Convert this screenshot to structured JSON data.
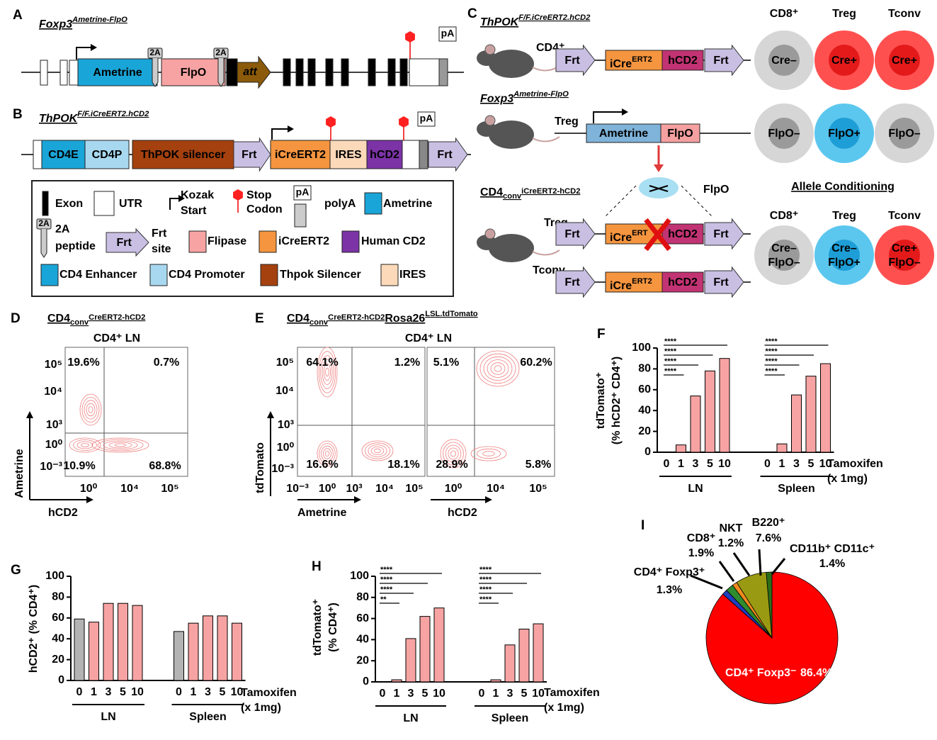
{
  "panel_labels": [
    "A",
    "B",
    "C",
    "D",
    "E",
    "F",
    "G",
    "H",
    "I"
  ],
  "panel_a": {
    "title": "Foxp3",
    "title_sup": "Ametrine-FlpO",
    "peptides": [
      "2A",
      "2A"
    ],
    "ametrine": "Ametrine",
    "flpo": "FlpO",
    "att": "att",
    "polya": "pA"
  },
  "panel_b": {
    "title": "ThPOK",
    "title_sup": "F/F.iCreERT2.hCD2",
    "cd4e": "CD4E",
    "cd4p": "CD4P",
    "silencer": "ThPOK silencer",
    "frt": [
      "Frt",
      "Frt"
    ],
    "icre": "iCreERT2",
    "ires": "IRES",
    "hcd2": "hCD2",
    "polya": "pA"
  },
  "legend": {
    "exon": "Exon",
    "utr": "UTR",
    "kozak": [
      "Kozak",
      "Start"
    ],
    "stop": [
      "Stop",
      "Codon"
    ],
    "pa": "pA",
    "polya": "polyA",
    "ametrine": "Ametrine",
    "peptide_icon": "2A",
    "peptide": [
      "2A",
      "peptide"
    ],
    "frt_icon": "Frt",
    "frt": [
      "Frt",
      "site"
    ],
    "flipase": "Flipase",
    "icre": "iCreERT2",
    "hcd2": "Human CD2",
    "enhancer": "CD4 Enhancer",
    "promoter": "CD4 Promoter",
    "silencer": "Thpok Silencer",
    "ires": "IRES"
  },
  "panel_c": {
    "row1": {
      "title": "ThPOK",
      "title_sup": "F/F.iCreERT2.hCD2",
      "cell": "CD4⁺",
      "frt": [
        "Frt",
        "Frt"
      ],
      "icre": "iCre",
      "icre_sup": "ERT2",
      "hcd2": "hCD2"
    },
    "row2": {
      "title": "Foxp3",
      "title_sup": "Ametrine-FlpO",
      "cell": "Treg",
      "ametrine": "Ametrine",
      "flpo": "FlpO"
    },
    "row3": {
      "title": "CD4",
      "title_sub": "conv",
      "title_sup": "iCreERT2-hCD2",
      "enzyme": "FlpO",
      "cells": [
        "Treg",
        "Tconv"
      ],
      "treg": {
        "frt": [
          "Frt",
          "Frt"
        ],
        "icre": "iCre",
        "icre_sup": "ERT",
        "hcd2": "hCD2"
      },
      "tconv": {
        "frt": [
          "Frt",
          "Frt"
        ],
        "icre": "iCre",
        "icre_sup": "ERT2",
        "hcd2": "hCD2"
      }
    },
    "columns": [
      "CD8⁺",
      "Treg",
      "Tconv"
    ],
    "cre_row": [
      "Cre–",
      "Cre+",
      "Cre+"
    ],
    "flpo_row": [
      "FlpO–",
      "FlpO+",
      "FlpO–"
    ],
    "allele_title": "Allele Conditioning",
    "allele_columns": [
      "CD8⁺",
      "Treg",
      "Tconv"
    ],
    "allele_row": [
      [
        "Cre–",
        "FlpO–"
      ],
      [
        "Cre–",
        "FlpO+"
      ],
      [
        "Cre+",
        "FlpO–"
      ]
    ]
  },
  "panel_d": {
    "title": "CD4",
    "title_sub": "conv",
    "title_sup": "CreERT2-hCD2",
    "subtitle": "CD4⁺ LN",
    "quadrants": [
      "19.6%",
      "0.7%",
      "10.9%",
      "68.8%"
    ],
    "yticks": [
      "10⁵",
      "10⁴",
      "10³",
      "10⁰",
      "10⁻³"
    ],
    "xticks": [
      "10⁰",
      "10⁴",
      "10⁵"
    ],
    "ylabel": "Ametrine",
    "xlabel": "hCD2"
  },
  "panel_e": {
    "title": "CD4",
    "title_sub": "conv",
    "title_sup": "CreERT2-hCD2",
    "title2": "Rosa26",
    "title2_sup": "LSL.tdTomato",
    "subtitle": "CD4⁺ LN",
    "yticks": [
      "10⁵",
      "10⁴",
      "10³",
      "10⁰",
      "10⁻³"
    ],
    "ylabel": "tdTomato",
    "left": {
      "quadrants": [
        "64.1%",
        "1.2%",
        "16.6%",
        "18.1%"
      ],
      "xticks": [
        "10⁻³",
        "10⁰",
        "10³",
        "10⁴",
        "10⁵"
      ],
      "xlabel": "Ametrine"
    },
    "right": {
      "quadrants": [
        "5.1%",
        "60.2%",
        "28.9%",
        "5.8%"
      ],
      "xticks": [
        "10⁰",
        "10⁴",
        "10⁵"
      ],
      "xlabel": "hCD2"
    }
  },
  "chart_data": [
    {
      "type": "bar",
      "ylabel": [
        "tdTomato⁺",
        "(% hCD2⁺ CD4⁺)"
      ],
      "categories": [
        "0",
        "1",
        "3",
        "5",
        "10",
        "0",
        "1",
        "3",
        "5",
        "10"
      ],
      "groups": [
        "LN",
        "Spleen"
      ],
      "values": [
        0,
        7,
        54,
        78,
        90,
        0,
        8,
        55,
        73,
        85
      ],
      "colors": [
        "#f8a3a3",
        "#f8a3a3",
        "#f8a3a3",
        "#f8a3a3",
        "#f8a3a3",
        "#f8a3a3",
        "#f8a3a3",
        "#f8a3a3",
        "#f8a3a3",
        "#f8a3a3"
      ],
      "ylim": [
        0,
        100
      ],
      "yticks": [
        0,
        20,
        40,
        60,
        80,
        100
      ],
      "xlabel": [
        "Tamoxifen",
        "(x 1mg)"
      ],
      "annotations": [
        "****",
        "****",
        "****",
        "****",
        "****",
        "****",
        "****",
        "****"
      ]
    },
    {
      "type": "bar",
      "ylabel": [
        "hCD2⁺ (% CD4⁺)"
      ],
      "categories": [
        "0",
        "1",
        "3",
        "5",
        "10",
        "0",
        "1",
        "3",
        "5",
        "10"
      ],
      "groups": [
        "LN",
        "Spleen"
      ],
      "values": [
        59,
        56,
        74,
        74,
        72,
        47,
        55,
        62,
        62,
        55
      ],
      "colors": [
        "#b3b3b3",
        "#f8a3a3",
        "#f8a3a3",
        "#f8a3a3",
        "#f8a3a3",
        "#b3b3b3",
        "#f8a3a3",
        "#f8a3a3",
        "#f8a3a3",
        "#f8a3a3"
      ],
      "ylim": [
        0,
        100
      ],
      "yticks": [
        0,
        20,
        40,
        60,
        80,
        100
      ],
      "xlabel": [
        "Tamoxifen",
        "(x 1mg)"
      ]
    },
    {
      "type": "bar",
      "ylabel": [
        "tdTomato⁺",
        "(% CD4⁺)"
      ],
      "categories": [
        "0",
        "1",
        "3",
        "5",
        "10",
        "0",
        "1",
        "3",
        "5",
        "10"
      ],
      "groups": [
        "LN",
        "Spleen"
      ],
      "values": [
        0,
        2,
        41,
        62,
        70,
        0,
        2,
        35,
        50,
        55
      ],
      "colors": [
        "#f8a3a3",
        "#f8a3a3",
        "#f8a3a3",
        "#f8a3a3",
        "#f8a3a3",
        "#f8a3a3",
        "#f8a3a3",
        "#f8a3a3",
        "#f8a3a3",
        "#f8a3a3"
      ],
      "ylim": [
        0,
        100
      ],
      "yticks": [
        0,
        20,
        40,
        60,
        80,
        100
      ],
      "xlabel": [
        "Tamoxifen",
        "(x 1mg)"
      ],
      "annotations": [
        "****",
        "****",
        "****",
        "**",
        "****",
        "****",
        "****",
        "****"
      ]
    },
    {
      "type": "pie",
      "categories": [
        "CD4⁺ Foxp3⁻",
        "CD4⁺ Foxp3⁺",
        "CD8⁺",
        "NKT",
        "B220⁺",
        "CD11b⁺ CD11c⁺"
      ],
      "values": [
        86.4,
        1.3,
        1.9,
        1.2,
        7.6,
        1.4
      ],
      "value_labels": [
        "86.4%",
        "1.3%",
        "1.9%",
        "1.2%",
        "7.6%",
        "1.4%"
      ],
      "colors": [
        "#ff0000",
        "#1f3fbf",
        "#2e8b2e",
        "#f08a1e",
        "#9a9a12",
        "#2a6e1a"
      ]
    }
  ]
}
